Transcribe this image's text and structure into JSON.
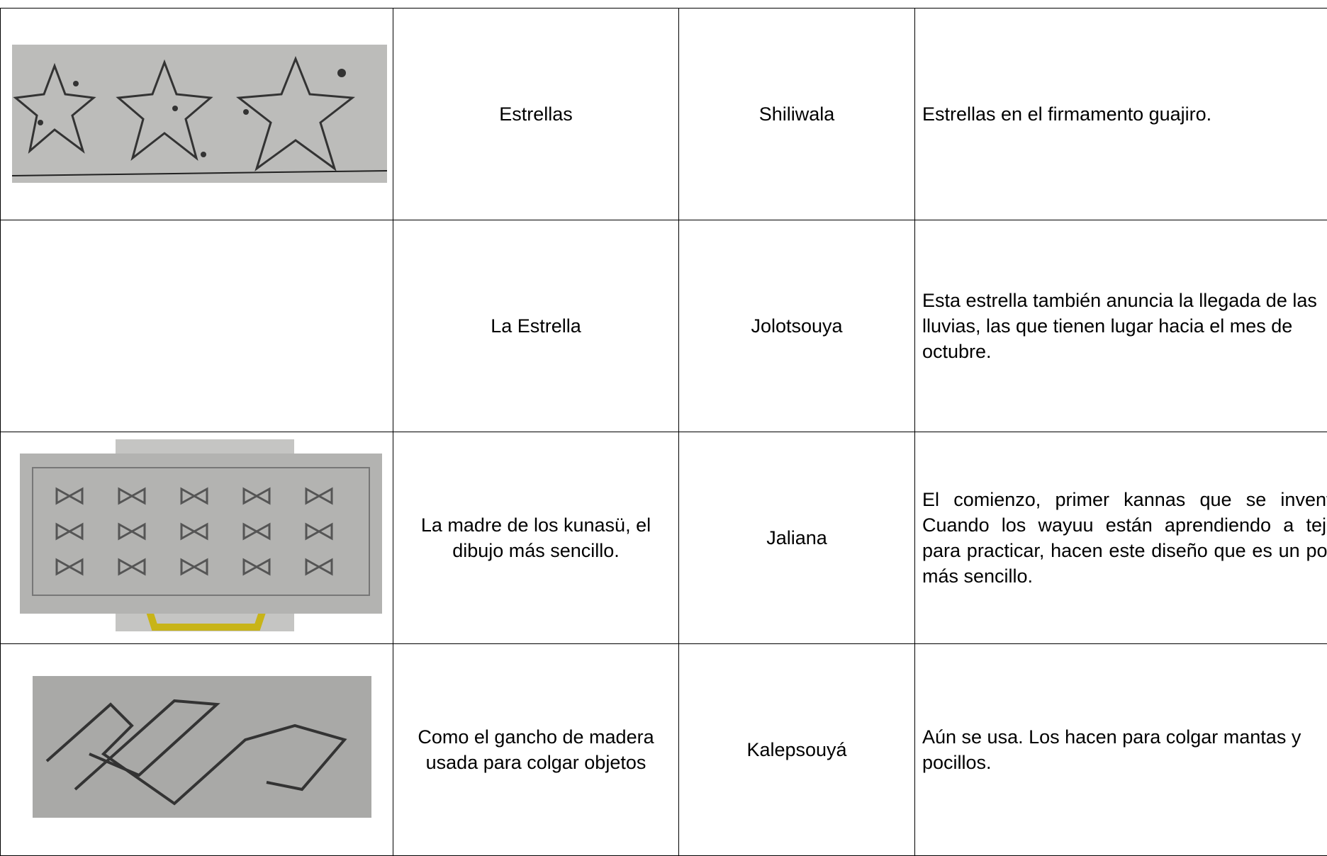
{
  "table": {
    "rows": [
      [
        "Estrellas",
        "Shiliwala",
        "Estrellas en el firmamento guajiro."
      ],
      [
        "La Estrella",
        "Jolotsouya",
        "Esta estrella también anuncia la llegada de las lluvias, las que tienen lugar hacia el mes de octubre."
      ],
      [
        "La madre de los kunasü, el dibujo más sencillo.",
        "Jaliana",
        "El comienzo, primer kannas que se inventó. Cuando los wayuu están aprendiendo a tejer, para practicar, hacen este diseño que es un poco más sencillo."
      ],
      [
        "Como el gancho de madera usada para colgar objetos",
        "Kalepsouyá",
        "Aún se usa. Los hacen para colgar mantas y pocillos."
      ]
    ]
  }
}
